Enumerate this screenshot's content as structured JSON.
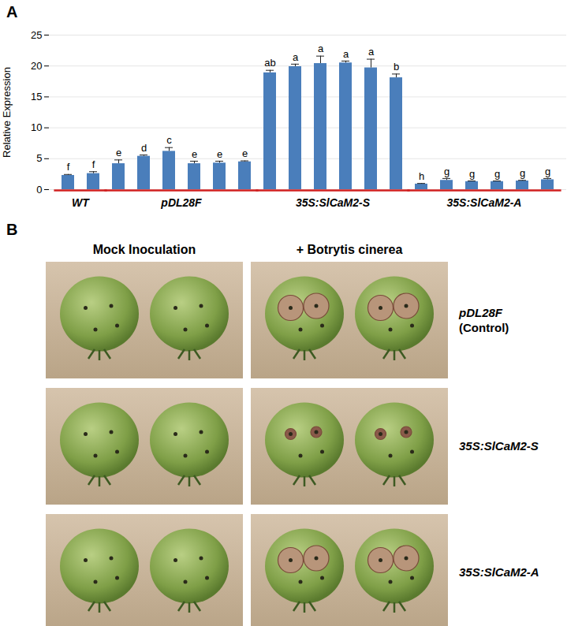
{
  "chart_data": {
    "type": "bar",
    "panel_label": "A",
    "ylabel": "Relative Expression",
    "categories": [
      null,
      null,
      null,
      null,
      null,
      null,
      null,
      null,
      null,
      null,
      null,
      null,
      null,
      null,
      null,
      null,
      null,
      null,
      null,
      null
    ],
    "groups": [
      "WT",
      "WT",
      "pDL28F",
      "pDL28F",
      "pDL28F",
      "pDL28F",
      "pDL28F",
      "pDL28F",
      "35S:SlCaM2-S",
      "35S:SlCaM2-S",
      "35S:SlCaM2-S",
      "35S:SlCaM2-S",
      "35S:SlCaM2-S",
      "35S:SlCaM2-S",
      "35S:SlCaM2-A",
      "35S:SlCaM2-A",
      "35S:SlCaM2-A",
      "35S:SlCaM2-A",
      "35S:SlCaM2-A",
      "35S:SlCaM2-A"
    ],
    "values": [
      2.3,
      2.6,
      4.2,
      5.4,
      6.2,
      4.2,
      4.3,
      4.5,
      18.9,
      19.9,
      20.4,
      20.5,
      19.7,
      18.1,
      0.9,
      1.5,
      1.3,
      1.3,
      1.4,
      1.6
    ],
    "errors": [
      0.15,
      0.3,
      0.6,
      0.2,
      0.6,
      0.4,
      0.3,
      0.15,
      0.4,
      0.4,
      1.2,
      0.3,
      1.4,
      0.6,
      0.1,
      0.3,
      0.1,
      0.1,
      0.1,
      0.2
    ],
    "letters": [
      "f",
      "f",
      "e",
      "d",
      "c",
      "e",
      "e",
      "e",
      "ab",
      "a",
      "a",
      "a",
      "a",
      "b",
      "h",
      "g",
      "g",
      "g",
      "g",
      "g"
    ],
    "color": "#4a7ebb",
    "ylim": [
      0,
      25
    ],
    "yticks": [
      0,
      5,
      10,
      15,
      20,
      25
    ],
    "grid": true
  },
  "photo_panel": {
    "panel_label": "B",
    "columns": [
      "Mock Inoculation",
      "+ Botrytis cinerea"
    ],
    "rows": [
      [
        "pDL28F",
        "(Control)"
      ],
      [
        "35S:SlCaM2-S"
      ],
      [
        "35S:SlCaM2-A"
      ]
    ]
  }
}
